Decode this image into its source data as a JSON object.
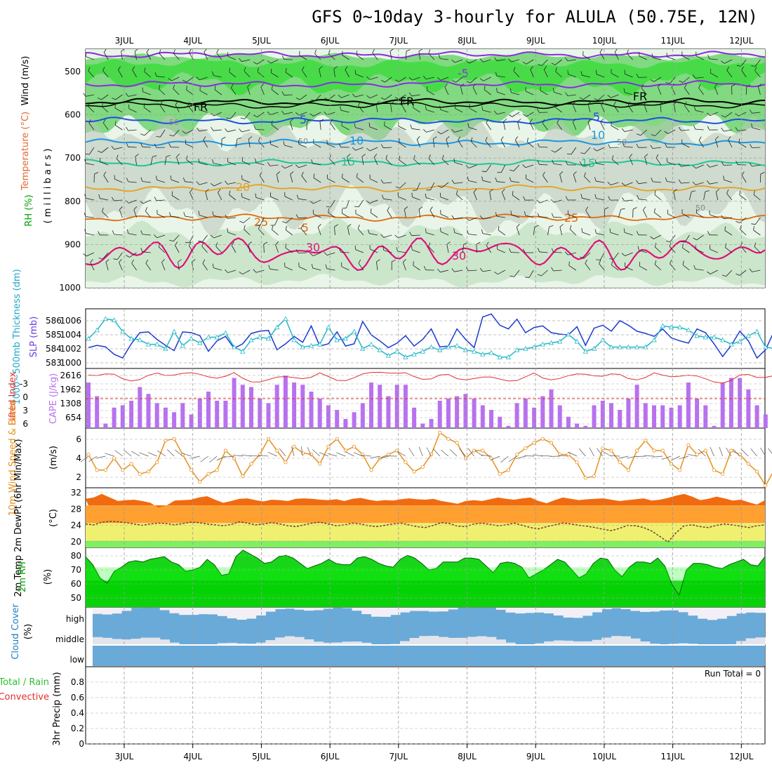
{
  "title": "GFS 0~10day 3-hourly for ALULA (50.75E, 12N)",
  "dates": [
    "3JUL",
    "4JUL",
    "5JUL",
    "6JUL",
    "7JUL",
    "8JUL",
    "9JUL",
    "10JUL",
    "11JUL",
    "12JUL"
  ],
  "panels": {
    "upper": {
      "ylabel_wind": "Wind (m/s)",
      "ylabel_temp": "Temperature (°C)",
      "ylabel_rh": "RH (%)",
      "ylabel_mb": "( m i l l i b a r s )",
      "yticks": [
        "500",
        "600",
        "700",
        "800",
        "900",
        "1000"
      ],
      "contour_labels": [
        "-5",
        "-5",
        "FR",
        "FR",
        "FR",
        "5",
        "5",
        "10",
        "10",
        "15",
        "15",
        "20",
        "25",
        "25",
        "30",
        "30",
        "50",
        "50",
        "50",
        "50"
      ],
      "colors": {
        "rh_light": "#e8f5e8",
        "rh_mid": "#b4d8b4",
        "rh_green": "#6ed46e",
        "rh_bright": "#00e000",
        "grey": "#b8c4b8",
        "t_minus5": "#8a2be2",
        "t_fr": "#000000",
        "t_5": "#1e50e0",
        "t_10": "#1e96e0",
        "t_15": "#1ec896",
        "t_20": "#e6a020",
        "t_25": "#e06a10",
        "t_30": "#e0107a"
      }
    },
    "slp": {
      "ylabel_left": "1000~500mb Thickness (dm)",
      "ylabel_right": "SLP (mb)",
      "left_ticks": [
        "586",
        "585",
        "584",
        "583"
      ],
      "right_ticks": [
        "1006",
        "1004",
        "1002",
        "1000"
      ]
    },
    "cape": {
      "ylabel_left": "Lifted Index",
      "ylabel_right": "CAPE (J/kg)",
      "left_ticks": [
        "-3",
        "0",
        "3",
        "6"
      ],
      "right_ticks": [
        "2616",
        "1962",
        "1308",
        "654"
      ]
    },
    "wind10": {
      "ylabel": "10m Wind Speed & Barbs",
      "unit": "(m/s)",
      "ticks": [
        "6",
        "4",
        "2"
      ]
    },
    "temp2m": {
      "ylabel": "2m Temp 2m DewPt (6hr Min/Max)",
      "unit": "(°C)",
      "ticks": [
        "32",
        "28",
        "24",
        "20"
      ]
    },
    "rh2m": {
      "ylabel": "2m RH",
      "unit": "(%)",
      "ticks": [
        "80",
        "70",
        "60",
        "50"
      ]
    },
    "cloud": {
      "ylabel": "Cloud Cover",
      "unit": "(%)",
      "levels": [
        "high",
        "middle",
        "low"
      ]
    },
    "precip": {
      "ylabel_a": "Total / Rain",
      "ylabel_b": "Convective",
      "ylabel_c": "3hr Precip (mm)",
      "ticks": [
        "0.8",
        "0.6",
        "0.4",
        "0.2",
        "0"
      ],
      "run_total": "Run Total = 0"
    }
  },
  "chart_data": [
    {
      "type": "line",
      "title": "SLP (mb)",
      "x_unit": "3-hourly steps from 2JUL 12Z",
      "y_range": [
        999.5,
        1007.5
      ],
      "values": [
        1002.3,
        1002.6,
        1002.4,
        1001.4,
        1000.9,
        1002.8,
        1004.3,
        1004.4,
        1003.4,
        1002.6,
        1001.9,
        1004.4,
        1004.3,
        1003.9,
        1001.8,
        1003.2,
        1003.8,
        1002.2,
        1002.8,
        1004.2,
        1004.5,
        1004.6,
        1002.0,
        1002.8,
        1003.8,
        1003.0,
        1005.2,
        1002.5,
        1002.8,
        1004.4,
        1002.5,
        1002.8,
        1005.8,
        1004.0,
        1003.2,
        1002.3,
        1002.9,
        1003.9,
        1002.5,
        1003.4,
        1004.8,
        1002.4,
        1002.5,
        1004.8,
        1003.4,
        1002.3,
        1006.4,
        1006.8,
        1005.3,
        1004.8,
        1006.1,
        1004.3,
        1005.0,
        1005.2,
        1004.3,
        1004.1,
        1004.0,
        1005.1,
        1002.6,
        1004.9,
        1005.3,
        1004.5,
        1005.9,
        1005.3,
        1004.5,
        1004.2,
        1003.8,
        1004.8,
        1003.6,
        1003.2,
        1002.9,
        1004.8,
        1004.3,
        1002.8,
        1001.1,
        1002.6,
        1004.5,
        1003.2,
        1000.9,
        1002.0,
        1004.5,
        1004.4,
        1003.0,
        1002.0,
        1002.9,
        1002.1,
        1001.5,
        1002.0,
        1002.9,
        1001.5,
        1003.2,
        1004.2
      ]
    },
    {
      "type": "line",
      "title": "1000~500mb Thickness (dm)",
      "y_range": [
        582.8,
        587.0
      ],
      "values": [
        584.9,
        585.5,
        586.3,
        586.2,
        585.4,
        584.9,
        584.8,
        584.5,
        584.5,
        584.2,
        585.4,
        584.4,
        584.9,
        584.6,
        585.0,
        585.0,
        585.3,
        584.3,
        584.0,
        584.8,
        585.0,
        584.9,
        585.7,
        586.3,
        584.8,
        584.3,
        584.4,
        584.5,
        585.7,
        584.8,
        584.9,
        585.4,
        584.2,
        584.5,
        584.1,
        583.7,
        584.0,
        583.6,
        583.8,
        584.0,
        584.3,
        584.1,
        584.3,
        584.4,
        584.1,
        584.0,
        583.8,
        583.9,
        583.6,
        583.6,
        584.1,
        584.2,
        584.3,
        584.5,
        584.6,
        584.7,
        585.2,
        584.7,
        584.0,
        584.2,
        584.8,
        584.3,
        584.3,
        584.3,
        584.3,
        584.3,
        584.8,
        585.8,
        585.7,
        585.7,
        585.5,
        585.1,
        585.0,
        585.0,
        584.8,
        584.5,
        584.7,
        585.1,
        585.4,
        584.3,
        584.2,
        584.6,
        583.8,
        583.6,
        584.2,
        584.3,
        584.4,
        584.6,
        584.8,
        584.8,
        584.6,
        584.8,
        583.5,
        584.4
      ]
    },
    {
      "type": "bar",
      "title": "CAPE (J/kg)",
      "y_range": [
        0,
        2616
      ],
      "values": [
        2000,
        1400,
        200,
        900,
        1000,
        1200,
        1800,
        1500,
        1100,
        900,
        700,
        1100,
        600,
        1300,
        1600,
        1200,
        1200,
        2200,
        1900,
        1800,
        1300,
        1100,
        1900,
        2300,
        2000,
        1900,
        1600,
        1300,
        1000,
        800,
        400,
        700,
        1100,
        2000,
        1900,
        1400,
        1900,
        1900,
        900,
        200,
        400,
        1200,
        1300,
        1400,
        1500,
        1300,
        1000,
        800,
        500,
        100,
        1100,
        1300,
        900,
        1400,
        1700,
        1000,
        500,
        200,
        100,
        1000,
        1200,
        1100,
        800,
        1300,
        1900,
        1100,
        1000,
        1000,
        900,
        1000,
        2000,
        1300,
        1000,
        100,
        2000,
        2200,
        2200,
        1700,
        1000,
        600,
        200,
        0,
        2000,
        1800,
        1600,
        1200,
        1200,
        1400,
        1600,
        1300,
        1300,
        800,
        1100,
        1900
      ]
    },
    {
      "type": "line",
      "title": "10m Wind Speed (m/s)",
      "y_range": [
        0,
        7
      ],
      "values": [
        4.0,
        2.0,
        2.0,
        3.5,
        2.0,
        2.8,
        1.5,
        1.8,
        3.0,
        5.8,
        6.0,
        4.0,
        2.0,
        0.5,
        1.5,
        2.0,
        4.5,
        3.5,
        1.2,
        2.8,
        4.0,
        6.0,
        4.5,
        3.0,
        5.0,
        4.2,
        4.0,
        2.8,
        5.0,
        6.0,
        4.5,
        5.0,
        4.0,
        2.0,
        3.5,
        4.0,
        4.5,
        3.0,
        1.8,
        2.4,
        4.0,
        6.8,
        6.0,
        5.5,
        3.5,
        4.5,
        4.5,
        3.5,
        1.5,
        2.0,
        4.0,
        4.8,
        5.5,
        6.0,
        5.5,
        4.0,
        4.0,
        3.0,
        1.0,
        1.2,
        4.8,
        4.5,
        3.0,
        2.0,
        4.5,
        5.8,
        4.5,
        4.5,
        2.8,
        2.0,
        5.2,
        4.0,
        4.5,
        2.0,
        1.5,
        4.5,
        4.0,
        2.8,
        1.8,
        0.0,
        2.0,
        4.8,
        4.0,
        3.5,
        3.0,
        3.5,
        4.0,
        4.8,
        2.0,
        4.0,
        3.5,
        4.0,
        2.5,
        4.0,
        2.0
      ]
    },
    {
      "type": "area",
      "title": "2m Temp (°C)",
      "y_range": [
        18.5,
        32
      ],
      "values": [
        29.5,
        29.8,
        30.6,
        29.8,
        29.0,
        29.2,
        29.3,
        29.0,
        28.6,
        27.5,
        28.0,
        29.1,
        29.2,
        29.3,
        29.8,
        30.1,
        29.3,
        28.6,
        29.0,
        29.5,
        29.6,
        29.2,
        28.9,
        29.3,
        29.2,
        29.0,
        29.5,
        29.6,
        29.5,
        29.3,
        29.2,
        29.4,
        29.0,
        29.5,
        29.7,
        29.3,
        29.0,
        29.2,
        29.1,
        29.4,
        29.6,
        29.4,
        29.3,
        29.5,
        29.0,
        28.7,
        28.4,
        29.0,
        29.2,
        29.0,
        29.4,
        29.8,
        29.5,
        29.3,
        29.6,
        29.8,
        29.0,
        28.5,
        29.2,
        29.8,
        29.5,
        29.2,
        29.4,
        29.5,
        29.6,
        29.3,
        29.0,
        29.2,
        29.4,
        29.6,
        29.1,
        29.3,
        29.7,
        30.2,
        30.6,
        30.0,
        29.2,
        29.5,
        30.0,
        29.6,
        29.1,
        29.3,
        28.7,
        28.2,
        29.2
      ]
    },
    {
      "type": "line",
      "title": "2m DewPt (°C)",
      "y_range": [
        18.5,
        32
      ],
      "values": [
        23.8,
        23.6,
        24.2,
        24.4,
        24.3,
        24.1,
        23.8,
        23.5,
        23.8,
        24.0,
        23.9,
        23.6,
        23.9,
        24.2,
        24.1,
        23.8,
        23.6,
        23.4,
        23.7,
        24.3,
        24.0,
        23.6,
        23.8,
        24.1,
        23.8,
        23.4,
        23.2,
        23.6,
        24.0,
        24.2,
        23.8,
        23.4,
        23.6,
        24.0,
        23.8,
        23.4,
        23.2,
        23.5,
        23.8,
        24.0,
        23.6,
        23.2,
        23.0,
        23.5,
        24.1,
        23.9,
        23.3,
        23.2,
        23.8,
        24.0,
        23.7,
        23.4,
        23.6,
        24.0,
        23.5,
        23.0,
        22.7,
        23.2,
        23.6,
        24.0,
        23.8,
        23.5,
        23.3,
        23.0,
        22.6,
        22.3,
        22.8,
        23.5,
        23.4,
        23.0,
        22.2,
        21.0,
        19.7,
        21.8,
        23.4,
        23.6,
        23.2,
        23.0,
        23.5,
        23.8,
        23.6,
        23.3,
        23.0,
        23.4,
        23.6
      ]
    },
    {
      "type": "area",
      "title": "2m RH (%)",
      "y_range": [
        40,
        85
      ],
      "values": [
        78,
        72,
        62,
        58,
        67,
        70,
        74,
        75,
        74,
        76,
        77,
        78,
        74,
        72,
        67,
        68,
        70,
        76,
        72,
        64,
        65,
        78,
        83,
        80,
        77,
        73,
        74,
        78,
        79,
        77,
        73,
        69,
        71,
        73,
        76,
        73,
        72,
        72,
        77,
        78,
        76,
        73,
        71,
        70,
        76,
        79,
        77,
        73,
        68,
        69,
        74,
        74,
        74,
        77,
        77,
        76,
        71,
        66,
        73,
        74,
        73,
        70,
        62,
        65,
        68,
        72,
        76,
        74,
        68,
        62,
        65,
        73,
        77,
        76,
        68,
        63,
        70,
        74,
        74,
        73,
        77,
        71,
        57,
        49,
        68,
        73,
        73,
        72,
        70,
        69,
        72,
        74,
        76,
        72,
        71,
        78
      ]
    },
    {
      "type": "area",
      "title": "3hr Precip (mm)",
      "y_range": [
        0,
        1
      ],
      "values": [],
      "run_total": 0
    }
  ]
}
